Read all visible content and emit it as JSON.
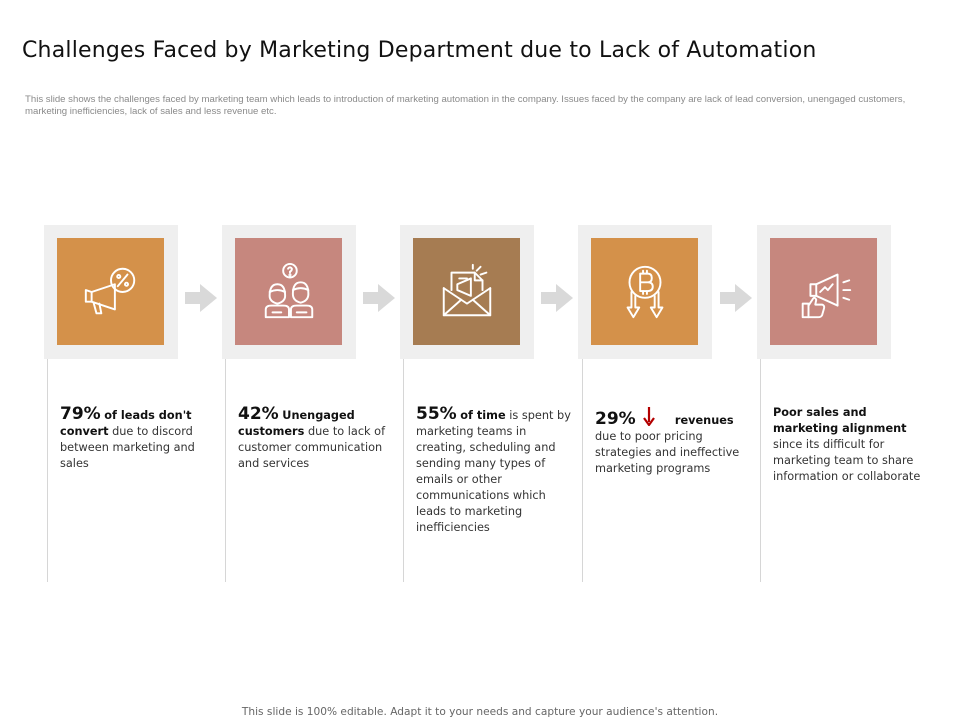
{
  "title": "Challenges Faced by Marketing Department due to Lack of Automation",
  "subtitle": "This slide shows the challenges faced by marketing team which leads to introduction of marketing automation in the company. Issues faced by the company are lack of lead conversion, unengaged customers, marketing inefficiencies, lack of sales and less revenue etc.",
  "colors": {
    "orange": "#D4914A",
    "rose": "#C6877E",
    "brown": "#A67C52",
    "frame": "#EFEFEF",
    "arrow": "#D9D9D9",
    "down_arrow": "#B30000"
  },
  "cards": [
    {
      "icon": "megaphone-percent-icon",
      "tile_color": "#D4914A",
      "pct": "79%",
      "bold": "of leads don't convert",
      "text": "due to discord between marketing and sales"
    },
    {
      "icon": "confused-customers-icon",
      "tile_color": "#C6877E",
      "pct": "42%",
      "bold": "Unengaged customers",
      "text": "due to lack of customer communication and services"
    },
    {
      "icon": "email-envelope-icon",
      "tile_color": "#A67C52",
      "pct": "55%",
      "bold": "of time",
      "text": "is spent by marketing teams in creating, scheduling and sending many types of emails or other communications which leads to marketing inefficiencies"
    },
    {
      "icon": "bitcoin-decline-icon",
      "tile_color": "#D4914A",
      "pct": "29%",
      "bold": "revenues",
      "text": "due to poor pricing strategies and ineffective marketing programs"
    },
    {
      "icon": "megaphone-thumb-icon",
      "tile_color": "#C6877E",
      "bold": "Poor sales and marketing alignment",
      "text": "since its difficult for marketing team to share information or collaborate"
    }
  ],
  "footer": "This slide is 100% editable. Adapt it to your needs and capture your audience's attention."
}
